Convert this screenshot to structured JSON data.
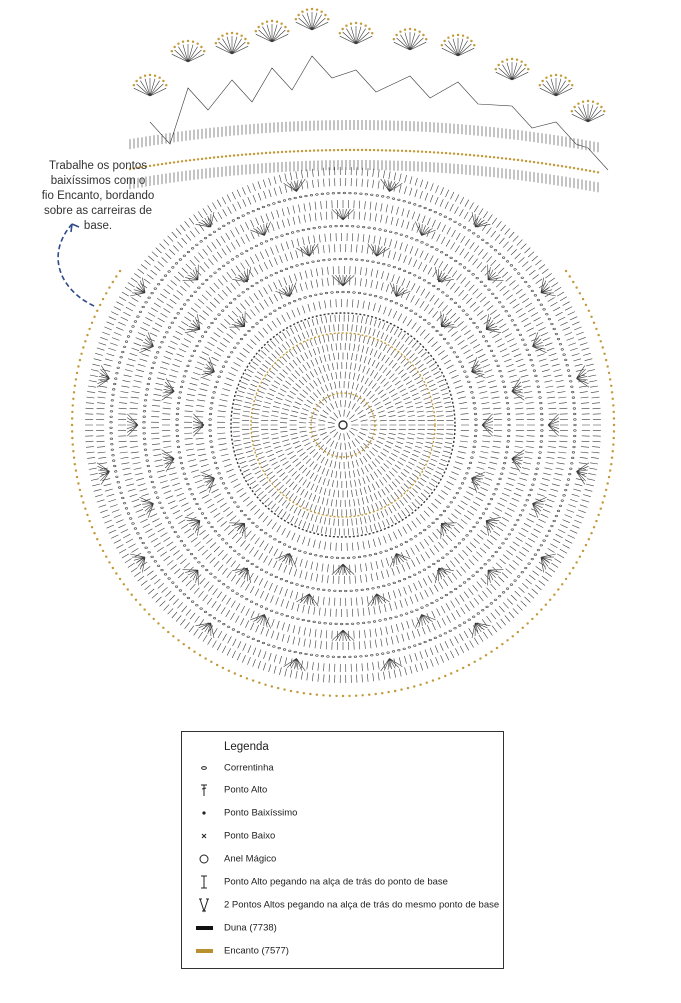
{
  "annotation": {
    "lines": [
      "Trabalhe os pontos",
      "baixíssimos com o",
      "fio Encanto, bordando",
      "sobre as carreiras de",
      "base."
    ]
  },
  "legend": {
    "title": "Legenda",
    "items": [
      {
        "label": "Correntinha"
      },
      {
        "label": "Ponto Alto"
      },
      {
        "label": "Ponto Baixíssimo"
      },
      {
        "label": "Ponto Baixo"
      },
      {
        "label": "Anel Mágico"
      },
      {
        "label": "Ponto Alto pegando na alça de trás do ponto de base"
      },
      {
        "label": "2 Pontos Altos pegando na alça de trás do mesmo ponto de base"
      },
      {
        "label": "Duna (7738)"
      },
      {
        "label": "Encanto (7577)"
      }
    ]
  }
}
